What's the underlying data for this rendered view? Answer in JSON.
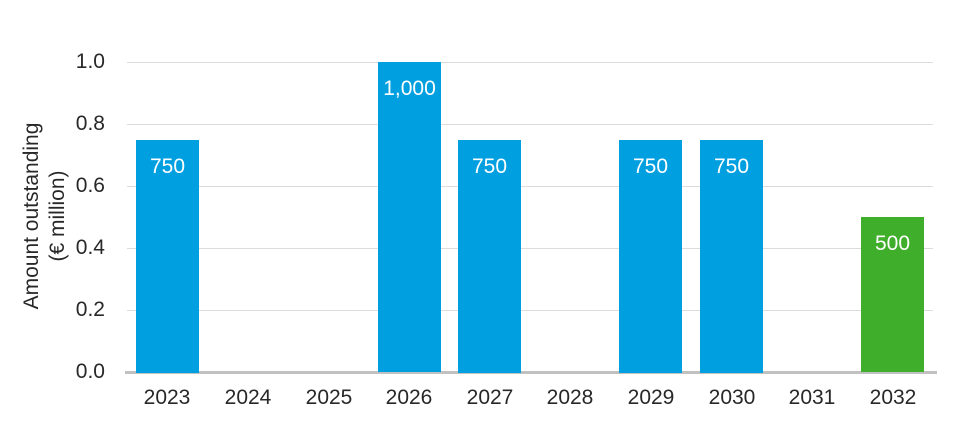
{
  "chart_data": {
    "type": "bar",
    "title": "",
    "ylabel_lines": [
      "Amount outstanding",
      "(€ million)"
    ],
    "xlabel": "",
    "categories": [
      "2023",
      "2024",
      "2025",
      "2026",
      "2027",
      "2028",
      "2029",
      "2030",
      "2031",
      "2032"
    ],
    "values": [
      750,
      0,
      0,
      1000,
      750,
      0,
      750,
      750,
      0,
      500
    ],
    "bar_labels": [
      "750",
      "",
      "",
      "1,000",
      "750",
      "",
      "750",
      "750",
      "",
      "500"
    ],
    "bar_colors": [
      "#009FE0",
      "",
      "",
      "#009FE0",
      "#009FE0",
      "",
      "#009FE0",
      "#009FE0",
      "",
      "#3FAE2A"
    ],
    "y_ticks": [
      "0.0",
      "0.2",
      "0.4",
      "0.6",
      "0.8",
      "1.0"
    ],
    "ylim": [
      0,
      1.0
    ],
    "value_axis_scale": 1000,
    "grid": "horizontal-only",
    "legend": "none",
    "colors": {
      "bar_blue": "#009FE0",
      "bar_green": "#3FAE2A",
      "gridline": "#DCDCDC",
      "axis_line": "#C1C1C1",
      "tick_text": "#282828",
      "bar_label_text": "#FFFFFF",
      "background": "#FFFFFF"
    }
  }
}
